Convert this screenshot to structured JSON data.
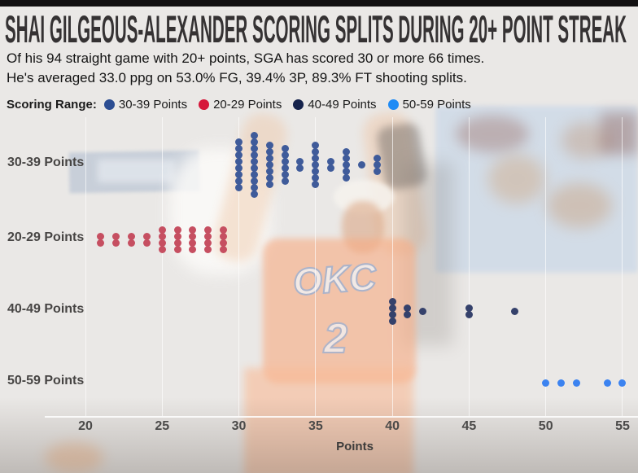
{
  "header": {
    "title": "SHAI GILGEOUS-ALEXANDER SCORING SPLITS DURING 20+ POINT STREAK",
    "subtitle_line1": "Of his 94 straight game with 20+ points, SGA has scored 30 or more 66 times.",
    "subtitle_line2": "He's averaged 33.0 ppg on 53.0% FG, 39.4% 3P, 89.3% FT shooting splits."
  },
  "legend": {
    "label": "Scoring Range:",
    "items": [
      {
        "label": "30-39 Points",
        "color": "#2c4d92"
      },
      {
        "label": "20-29 Points",
        "color": "#d6173a"
      },
      {
        "label": "40-49 Points",
        "color": "#16234c"
      },
      {
        "label": "50-59 Points",
        "color": "#1f8bf5"
      }
    ]
  },
  "photo": {
    "jersey_logo": "OKC",
    "jersey_number": "2"
  },
  "chart_data": {
    "type": "scatter",
    "subtype": "dot-strip-plot",
    "xlabel": "Points",
    "x_ticks": [
      20,
      25,
      30,
      35,
      40,
      45,
      50,
      55
    ],
    "x_range": [
      19.4,
      56
    ],
    "grid": true,
    "total_games": 94,
    "rows": [
      {
        "label": "30-39 Points",
        "color": "#3f5b9a",
        "total": 51,
        "points": {
          "30": 8,
          "31": 10,
          "32": 7,
          "33": 6,
          "34": 2,
          "35": 7,
          "36": 2,
          "37": 5,
          "38": 1,
          "39": 3
        }
      },
      {
        "label": "20-29 Points",
        "color": "#c64f61",
        "total": 28,
        "points": {
          "21": 2,
          "22": 2,
          "23": 2,
          "24": 2,
          "25": 4,
          "26": 4,
          "27": 4,
          "28": 4,
          "29": 4
        }
      },
      {
        "label": "40-49 Points",
        "color": "#35416b",
        "total": 10,
        "points": {
          "40": 4,
          "41": 2,
          "42": 1,
          "45": 2,
          "48": 1
        }
      },
      {
        "label": "50-59 Points",
        "color": "#3c83f0",
        "total": 5,
        "points": {
          "50": 1,
          "51": 1,
          "52": 1,
          "54": 1,
          "55": 1
        }
      }
    ]
  }
}
